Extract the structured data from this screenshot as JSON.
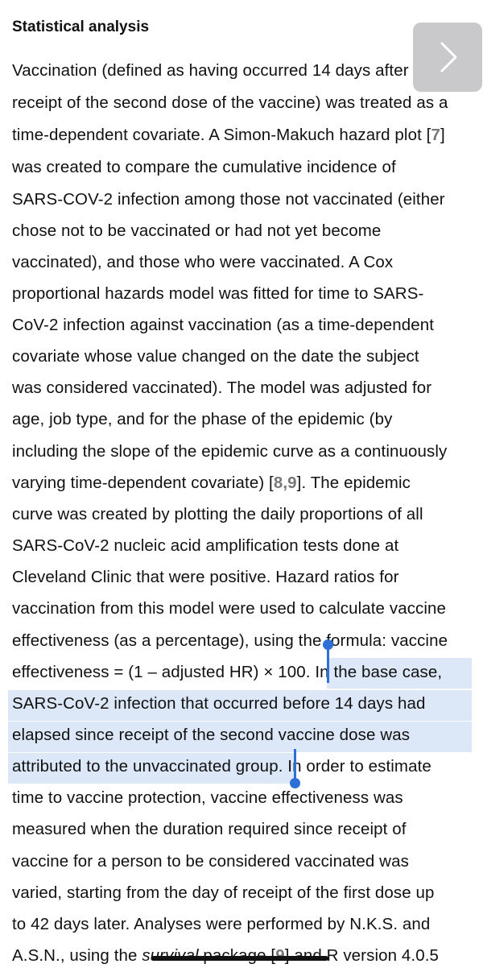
{
  "section": {
    "title": "Statistical analysis"
  },
  "lines": [
    "Vaccination (defined as having occurred 14 days after",
    "receipt of the second dose of the vaccine) was treated as a",
    "time-dependent covariate. A Simon-Makuch hazard plot [",
    "was created to compare the cumulative incidence of",
    "SARS-COV-2 infection among those not vaccinated (either",
    "chose not to be vaccinated or had not yet become",
    "vaccinated), and those who were vaccinated. A Cox",
    "proportional hazards model was fitted for time to SARS-",
    "CoV-2 infection against vaccination (as a time-dependent",
    "covariate whose value changed on the date the subject",
    "was considered vaccinated). The model was adjusted for",
    "age, job type, and for the phase of the epidemic (by",
    "including the slope of the epidemic curve as a continuously",
    "varying time-dependent covariate) [",
    "curve was created by plotting the daily proportions of all",
    "SARS-CoV-2 nucleic acid amplification tests done at",
    "Cleveland Clinic that were positive. Hazard ratios for",
    "vaccination from this model were used to calculate vaccine",
    "effectiveness (as a percentage), using the formula: vaccine",
    "effectiveness = (1 – adjusted HR) × 100. ",
    "SARS-CoV-2 infection that occurred before 14 days had",
    "elapsed since receipt of the second vaccine dose was",
    "attributed to the unvaccinated group.",
    "time to vaccine protection, vaccine effectiveness was",
    "measured when the duration required since receipt of",
    "vaccine for a person to be considered vaccinated was",
    "varied, starting from the day of receipt of the first dose up",
    "to 42 days later. Analyses were performed by N.K.S. and",
    "A.S.N., using the "
  ],
  "inline": {
    "ref_7": "7",
    "ref_7_close": "]",
    "ref_8": "8",
    "ref_comma": ",",
    "ref_9": "9",
    "ref_89_close": "]. The epidemic",
    "highlight_start": "In the base case,",
    "after_highlight": " In order to estimate",
    "survival": "survival",
    "package": " package [",
    "ref_last": "9",
    "last_tail": "] and R version 4.0.5"
  },
  "icons": {
    "next": "chevron-right-icon"
  },
  "colors": {
    "highlight": "#dce7f8",
    "cursor": "#2d6fd7",
    "reference": "#777777"
  }
}
